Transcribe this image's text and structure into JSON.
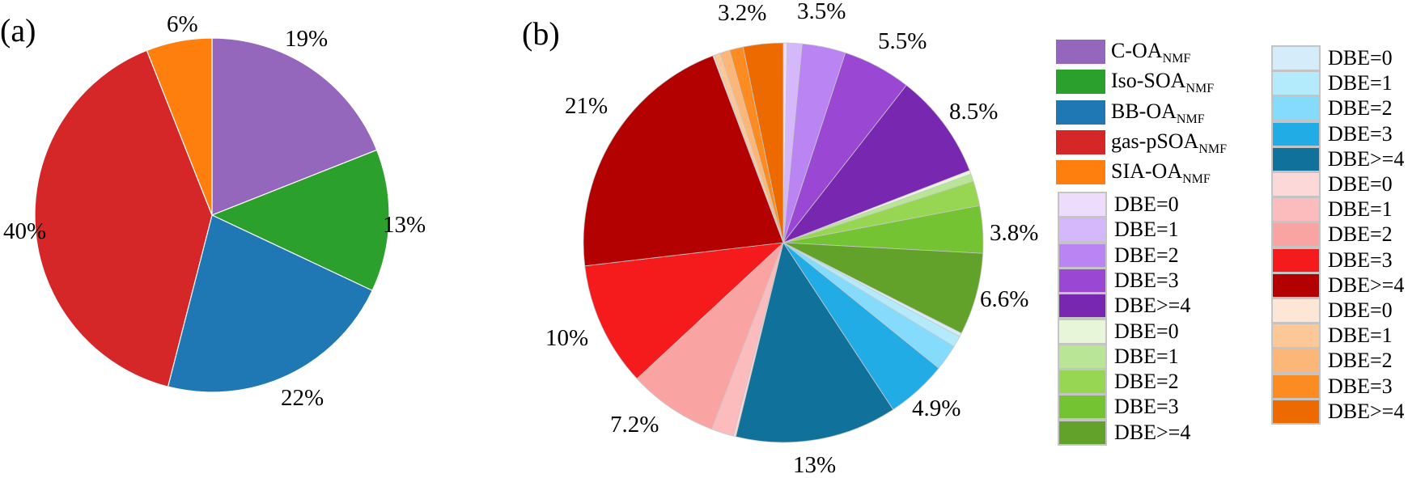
{
  "chart_data": [
    {
      "type": "pie",
      "panel_label": "(a)",
      "categories": [
        "C-OA_NMF",
        "Iso-SOA_NMF",
        "BB-OA_NMF",
        "gas-pSOA_NMF",
        "SIA-OA_NMF"
      ],
      "values": [
        19,
        13,
        22,
        40,
        6
      ],
      "data_labels": [
        "19%",
        "13%",
        "22%",
        "40%",
        "6%"
      ],
      "colors": [
        "#9467bd",
        "#2ca02c",
        "#1f77b4",
        "#d62728",
        "#ff7f0e"
      ],
      "start": "top",
      "direction": "clockwise"
    },
    {
      "type": "pie",
      "panel_label": "(b)",
      "groups": [
        {
          "name": "C-OA_NMF",
          "categories": [
            "DBE=0",
            "DBE=1",
            "DBE=2",
            "DBE=3",
            "DBE>=4"
          ],
          "values": [
            0.3,
            1.2,
            3.5,
            5.5,
            8.5
          ],
          "colors": [
            "#eedcfd",
            "#d5b7fb",
            "#bb84f3",
            "#9a48d3",
            "#7827b0"
          ],
          "data_labels": [
            "",
            "",
            "3.5%",
            "5.5%",
            "8.5%"
          ]
        },
        {
          "name": "Iso-SOA_NMF",
          "categories": [
            "DBE=0",
            "DBE=1",
            "DBE=2",
            "DBE=3",
            "DBE>=4"
          ],
          "values": [
            0.3,
            0.6,
            2.0,
            3.8,
            6.6
          ],
          "colors": [
            "#e7f5d8",
            "#b8e696",
            "#97d652",
            "#74c332",
            "#62a22a"
          ],
          "data_labels": [
            "",
            "",
            "",
            "3.8%",
            "6.6%"
          ]
        },
        {
          "name": "BB-OA_NMF",
          "categories": [
            "DBE=0",
            "DBE=1",
            "DBE=2",
            "DBE=3",
            "DBE>=4"
          ],
          "values": [
            0.3,
            0.9,
            2.1,
            4.9,
            13
          ],
          "colors": [
            "#d5edfb",
            "#b4ebfc",
            "#84dbfc",
            "#22ace6",
            "#10729a"
          ],
          "data_labels": [
            "",
            "",
            "",
            "4.9%",
            "13%"
          ]
        },
        {
          "name": "gas-pSOA_NMF",
          "categories": [
            "DBE=0",
            "DBE=1",
            "DBE=2",
            "DBE=3",
            "DBE>=4"
          ],
          "values": [
            0.2,
            1.8,
            7.2,
            10,
            21
          ],
          "colors": [
            "#fdd8d9",
            "#fcbcbd",
            "#faa3a3",
            "#f51a1b",
            "#b30000"
          ],
          "data_labels": [
            "",
            "",
            "7.2%",
            "10%",
            "21%"
          ]
        },
        {
          "name": "SIA-OA_NMF",
          "categories": [
            "DBE=0",
            "DBE=1",
            "DBE=2",
            "DBE=3",
            "DBE>=4"
          ],
          "values": [
            0.1,
            0.5,
            0.8,
            1.1,
            3.2
          ],
          "colors": [
            "#fde6d6",
            "#fdc898",
            "#fcb677",
            "#fc8c22",
            "#ed6a00"
          ],
          "data_labels": [
            "",
            "",
            "",
            "",
            "3.2%"
          ]
        }
      ],
      "start": "top",
      "direction": "clockwise"
    }
  ],
  "legend": {
    "placement": "right",
    "groups": [
      {
        "main": "C-OA",
        "sub": "NMF",
        "color": "#9467bd"
      },
      {
        "main": "Iso-SOA",
        "sub": "NMF",
        "color": "#2ca02c"
      },
      {
        "main": "BB-OA",
        "sub": "NMF",
        "color": "#1f77b4"
      },
      {
        "main": "gas-pSOA",
        "sub": "NMF",
        "color": "#d62728"
      },
      {
        "main": "SIA-OA",
        "sub": "NMF",
        "color": "#ff7f0e"
      }
    ]
  }
}
